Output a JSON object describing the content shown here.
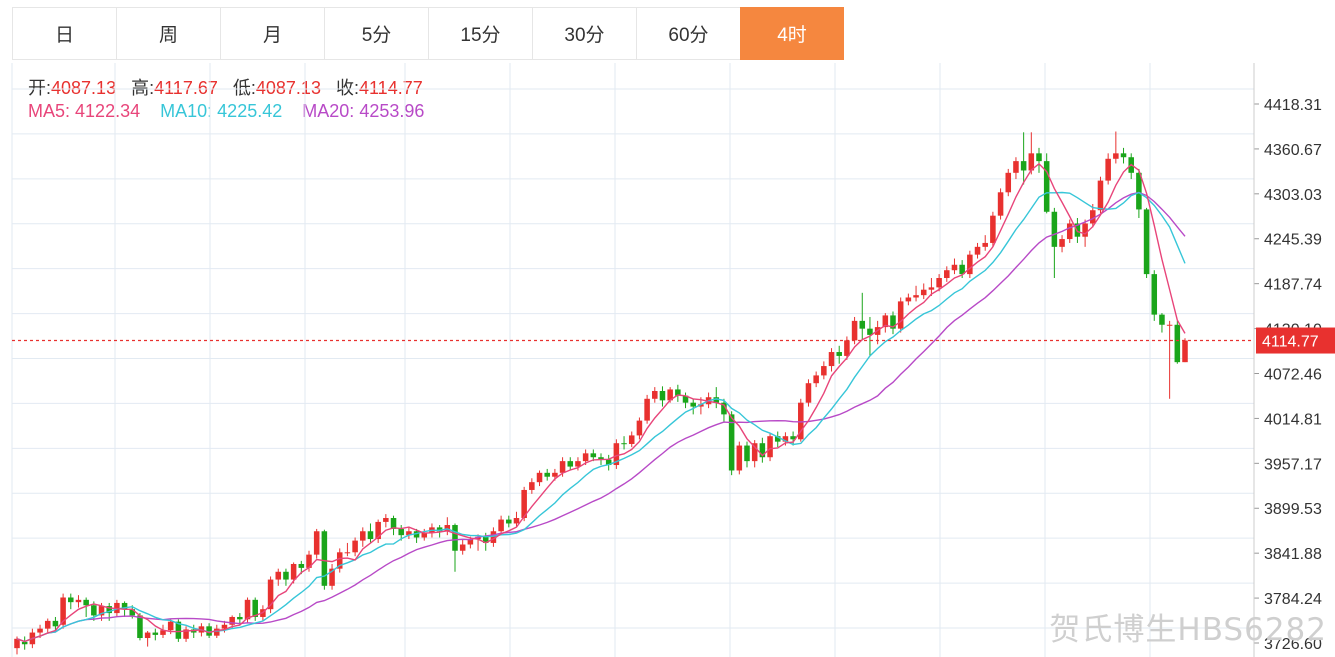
{
  "tabs": [
    {
      "label": "日",
      "active": false
    },
    {
      "label": "周",
      "active": false
    },
    {
      "label": "月",
      "active": false
    },
    {
      "label": "5分",
      "active": false
    },
    {
      "label": "15分",
      "active": false
    },
    {
      "label": "30分",
      "active": false
    },
    {
      "label": "60分",
      "active": false
    },
    {
      "label": "4时",
      "active": true
    }
  ],
  "ohlc": {
    "open_label": "开:",
    "open": "4087.13",
    "high_label": "高:",
    "high": "4117.67",
    "low_label": "低:",
    "low": "4087.13",
    "close_label": "收:",
    "close": "4114.77"
  },
  "ma": {
    "ma5_label": "MA5:",
    "ma5": "4122.34",
    "ma10_label": "MA10:",
    "ma10": "4225.42",
    "ma20_label": "MA20:",
    "ma20": "4253.96"
  },
  "colors": {
    "up": "#e8312f",
    "down": "#1aa51a",
    "ma5": "#e8457a",
    "ma10": "#37c6d8",
    "ma20": "#b84ac7",
    "grid": "#e2eaf2",
    "accent": "#f5873f",
    "price_line": "#e8312f"
  },
  "last_price_tag": "4114.77",
  "watermark": "贺氏博生HBS6282",
  "chart_data": {
    "type": "candlestick",
    "title": "",
    "ylim": [
      3715,
      4440
    ],
    "yticks": [
      "4418.31",
      "4360.67",
      "4303.03",
      "4245.39",
      "4187.74",
      "4130.10",
      "4072.46",
      "4014.81",
      "3957.17",
      "3899.53",
      "3841.88",
      "3784.24",
      "3726.60"
    ],
    "series": [
      {
        "name": "MA5",
        "values": []
      },
      {
        "name": "MA10",
        "values": []
      },
      {
        "name": "MA20",
        "values": []
      }
    ],
    "candles": [
      [
        3720,
        3732,
        3712,
        3735
      ],
      [
        3728,
        3725,
        3718,
        3735
      ],
      [
        3725,
        3740,
        3720,
        3745
      ],
      [
        3740,
        3745,
        3733,
        3750
      ],
      [
        3745,
        3755,
        3740,
        3758
      ],
      [
        3755,
        3748,
        3740,
        3760
      ],
      [
        3750,
        3785,
        3745,
        3790
      ],
      [
        3785,
        3779,
        3770,
        3790
      ],
      [
        3779,
        3782,
        3772,
        3788
      ],
      [
        3782,
        3775,
        3760,
        3785
      ],
      [
        3775,
        3762,
        3755,
        3780
      ],
      [
        3762,
        3774,
        3755,
        3778
      ],
      [
        3774,
        3765,
        3755,
        3778
      ],
      [
        3765,
        3778,
        3760,
        3782
      ],
      [
        3778,
        3770,
        3760,
        3780
      ],
      [
        3770,
        3762,
        3758,
        3775
      ],
      [
        3762,
        3733,
        3730,
        3765
      ],
      [
        3733,
        3740,
        3722,
        3742
      ],
      [
        3740,
        3737,
        3730,
        3745
      ],
      [
        3737,
        3743,
        3733,
        3750
      ],
      [
        3743,
        3754,
        3738,
        3758
      ],
      [
        3754,
        3732,
        3728,
        3757
      ],
      [
        3732,
        3744,
        3728,
        3748
      ],
      [
        3744,
        3740,
        3733,
        3750
      ],
      [
        3740,
        3748,
        3735,
        3752
      ],
      [
        3748,
        3736,
        3733,
        3752
      ],
      [
        3736,
        3745,
        3733,
        3750
      ],
      [
        3745,
        3750,
        3740,
        3755
      ],
      [
        3750,
        3760,
        3745,
        3762
      ],
      [
        3760,
        3757,
        3750,
        3765
      ],
      [
        3757,
        3782,
        3752,
        3785
      ],
      [
        3782,
        3760,
        3755,
        3785
      ],
      [
        3760,
        3770,
        3755,
        3775
      ],
      [
        3770,
        3808,
        3765,
        3812
      ],
      [
        3808,
        3818,
        3800,
        3822
      ],
      [
        3818,
        3808,
        3800,
        3822
      ],
      [
        3808,
        3828,
        3803,
        3830
      ],
      [
        3828,
        3823,
        3815,
        3832
      ],
      [
        3823,
        3840,
        3818,
        3845
      ],
      [
        3840,
        3870,
        3835,
        3873
      ],
      [
        3870,
        3800,
        3795,
        3872
      ],
      [
        3800,
        3822,
        3795,
        3828
      ],
      [
        3822,
        3843,
        3817,
        3848
      ],
      [
        3843,
        3843,
        3838,
        3855
      ],
      [
        3843,
        3858,
        3838,
        3862
      ],
      [
        3858,
        3870,
        3850,
        3875
      ],
      [
        3870,
        3860,
        3855,
        3880
      ],
      [
        3860,
        3882,
        3855,
        3885
      ],
      [
        3882,
        3887,
        3875,
        3892
      ],
      [
        3887,
        3873,
        3865,
        3890
      ],
      [
        3873,
        3865,
        3858,
        3878
      ],
      [
        3865,
        3870,
        3860,
        3875
      ],
      [
        3870,
        3862,
        3855,
        3873
      ],
      [
        3862,
        3868,
        3858,
        3873
      ],
      [
        3868,
        3875,
        3862,
        3880
      ],
      [
        3875,
        3870,
        3862,
        3878
      ],
      [
        3870,
        3878,
        3865,
        3888
      ],
      [
        3878,
        3845,
        3818,
        3880
      ],
      [
        3845,
        3853,
        3840,
        3860
      ],
      [
        3853,
        3860,
        3848,
        3863
      ],
      [
        3860,
        3863,
        3845,
        3866
      ],
      [
        3863,
        3855,
        3845,
        3868
      ],
      [
        3855,
        3870,
        3850,
        3875
      ],
      [
        3870,
        3885,
        3865,
        3890
      ],
      [
        3885,
        3880,
        3875,
        3890
      ],
      [
        3880,
        3887,
        3876,
        3895
      ],
      [
        3887,
        3923,
        3883,
        3927
      ],
      [
        3923,
        3933,
        3918,
        3938
      ],
      [
        3933,
        3945,
        3928,
        3948
      ],
      [
        3945,
        3940,
        3935,
        3950
      ],
      [
        3940,
        3945,
        3935,
        3950
      ],
      [
        3945,
        3960,
        3940,
        3965
      ],
      [
        3960,
        3953,
        3948,
        3965
      ],
      [
        3953,
        3960,
        3948,
        3965
      ],
      [
        3960,
        3970,
        3955,
        3975
      ],
      [
        3970,
        3965,
        3960,
        3975
      ],
      [
        3965,
        3962,
        3955,
        3970
      ],
      [
        3962,
        3955,
        3948,
        3968
      ],
      [
        3955,
        3983,
        3950,
        3988
      ],
      [
        3983,
        3982,
        3975,
        3992
      ],
      [
        3982,
        3993,
        3978,
        3998
      ],
      [
        3993,
        4012,
        3988,
        4016
      ],
      [
        4012,
        4040,
        4008,
        4045
      ],
      [
        4040,
        4050,
        4035,
        4055
      ],
      [
        4050,
        4038,
        4030,
        4056
      ],
      [
        4038,
        4052,
        4035,
        4055
      ],
      [
        4052,
        4044,
        4036,
        4058
      ],
      [
        4044,
        4035,
        4028,
        4048
      ],
      [
        4035,
        4030,
        4020,
        4040
      ],
      [
        4030,
        4033,
        4020,
        4042
      ],
      [
        4033,
        4042,
        4028,
        4048
      ],
      [
        4042,
        4035,
        4028,
        4055
      ],
      [
        4035,
        4020,
        4010,
        4040
      ],
      [
        4020,
        3948,
        3942,
        4024
      ],
      [
        3948,
        3980,
        3943,
        3985
      ],
      [
        3980,
        3960,
        3952,
        3985
      ],
      [
        3960,
        3983,
        3952,
        3987
      ],
      [
        3983,
        3965,
        3958,
        3990
      ],
      [
        3965,
        3992,
        3960,
        3996
      ],
      [
        3992,
        3985,
        3978,
        3998
      ],
      [
        3985,
        3992,
        3980,
        3997
      ],
      [
        3992,
        3988,
        3980,
        3998
      ],
      [
        3988,
        4035,
        3985,
        4040
      ],
      [
        4035,
        4060,
        4030,
        4065
      ],
      [
        4060,
        4070,
        4055,
        4075
      ],
      [
        4070,
        4082,
        4065,
        4088
      ],
      [
        4082,
        4100,
        4075,
        4105
      ],
      [
        4100,
        4095,
        4085,
        4108
      ],
      [
        4095,
        4115,
        4090,
        4120
      ],
      [
        4115,
        4140,
        4110,
        4145
      ],
      [
        4140,
        4130,
        4115,
        4176
      ],
      [
        4130,
        4122,
        4095,
        4145
      ],
      [
        4122,
        4132,
        4110,
        4140
      ],
      [
        4132,
        4147,
        4125,
        4150
      ],
      [
        4147,
        4130,
        4123,
        4152
      ],
      [
        4130,
        4165,
        4125,
        4170
      ],
      [
        4165,
        4170,
        4160,
        4175
      ],
      [
        4170,
        4173,
        4165,
        4185
      ],
      [
        4173,
        4180,
        4168,
        4188
      ],
      [
        4180,
        4183,
        4172,
        4195
      ],
      [
        4183,
        4195,
        4178,
        4200
      ],
      [
        4195,
        4205,
        4190,
        4210
      ],
      [
        4205,
        4212,
        4200,
        4220
      ],
      [
        4212,
        4200,
        4195,
        4218
      ],
      [
        4200,
        4225,
        4195,
        4230
      ],
      [
        4225,
        4235,
        4220,
        4240
      ],
      [
        4235,
        4240,
        4230,
        4250
      ],
      [
        4240,
        4275,
        4235,
        4280
      ],
      [
        4275,
        4305,
        4270,
        4310
      ],
      [
        4305,
        4330,
        4300,
        4335
      ],
      [
        4330,
        4345,
        4322,
        4350
      ],
      [
        4345,
        4333,
        4315,
        4382
      ],
      [
        4333,
        4355,
        4328,
        4382
      ],
      [
        4355,
        4345,
        4330,
        4362
      ],
      [
        4345,
        4280,
        4278,
        4355
      ],
      [
        4280,
        4235,
        4195,
        4285
      ],
      [
        4235,
        4245,
        4228,
        4250
      ],
      [
        4245,
        4265,
        4240,
        4270
      ],
      [
        4265,
        4248,
        4240,
        4272
      ],
      [
        4248,
        4265,
        4235,
        4270
      ],
      [
        4265,
        4282,
        4260,
        4290
      ],
      [
        4282,
        4320,
        4278,
        4325
      ],
      [
        4320,
        4348,
        4315,
        4355
      ],
      [
        4348,
        4355,
        4342,
        4383
      ],
      [
        4355,
        4350,
        4342,
        4362
      ],
      [
        4350,
        4330,
        4322,
        4355
      ],
      [
        4330,
        4283,
        4272,
        4335
      ],
      [
        4283,
        4200,
        4195,
        4285
      ],
      [
        4200,
        4148,
        4140,
        4205
      ],
      [
        4148,
        4135,
        4125,
        4150
      ],
      [
        4135,
        4135,
        4040,
        4140
      ],
      [
        4135,
        4087,
        4085,
        4140
      ],
      [
        4087,
        4114.77,
        4087,
        4117.67
      ]
    ]
  }
}
